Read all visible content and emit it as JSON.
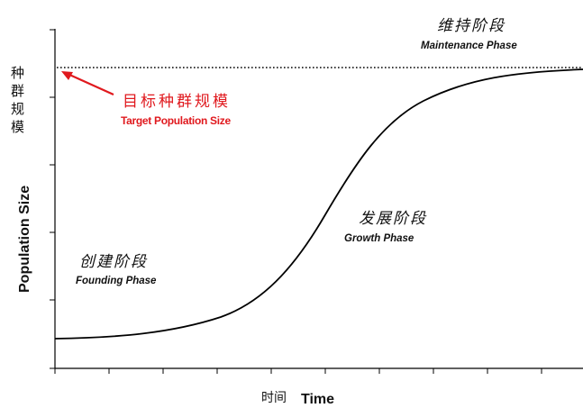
{
  "phases": {
    "maintenance": {
      "cn": "维持阶段",
      "en": "Maintenance Phase"
    },
    "growth": {
      "cn": "发展阶段",
      "en": "Growth Phase"
    },
    "founding": {
      "cn": "创建阶段",
      "en": "Founding Phase"
    }
  },
  "target": {
    "cn": "目标种群规模",
    "en": "Target Population Size"
  },
  "y_axis": {
    "cn_chars": [
      "种",
      "群",
      "规",
      "模"
    ],
    "en": "Population Size"
  },
  "x_axis": {
    "cn": "时间",
    "en": "Time"
  },
  "colors": {
    "curve": "#000000",
    "target_line": "#000000",
    "annotation_red": "#e0191e",
    "axis": "#000000"
  }
}
